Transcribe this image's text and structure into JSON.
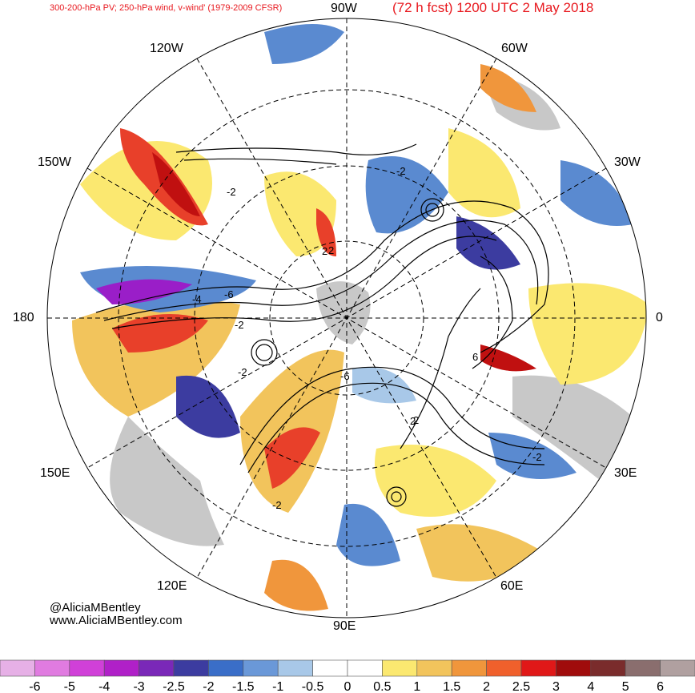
{
  "header": {
    "title_left": "300-200-hPa PV; 250-hPa wind, v-wind' (1979-2009 CFSR)",
    "title_right": "(72 h fcst) 1200 UTC 2 May 2018"
  },
  "longitude_labels": {
    "lon_90w": "90W",
    "lon_120w": "120W",
    "lon_60w": "60W",
    "lon_150w": "150W",
    "lon_30w": "30W",
    "lon_180": "180",
    "lon_0": "0",
    "lon_150e": "150E",
    "lon_30e": "30E",
    "lon_120e": "120E",
    "lon_60e": "60E",
    "lon_90e": "90E"
  },
  "contour_labels": [
    "-2",
    "-2",
    "2",
    "-4",
    "-6",
    "-2",
    "6",
    "-6",
    "2",
    "-2",
    "-2",
    "-2",
    "2",
    "2"
  ],
  "credits": {
    "handle": "@AliciaMBentley",
    "website": "www.AliciaMBentley.com"
  },
  "colorbar": {
    "ticks": [
      "-6",
      "-5",
      "-4",
      "-3",
      "-2.5",
      "-2",
      "-1.5",
      "-1",
      "-0.5",
      "0",
      "0.5",
      "1",
      "1.5",
      "2",
      "2.5",
      "3",
      "4",
      "5",
      "6"
    ],
    "colors": [
      "#e6b0e6",
      "#e07be0",
      "#d040d8",
      "#b020c8",
      "#7a28b8",
      "#3c3ca0",
      "#3a6ec8",
      "#6a98d8",
      "#a8c8e8",
      "#ffffff",
      "#ffffff",
      "#fbe870",
      "#f2c45c",
      "#f0963c",
      "#f0602c",
      "#e01818",
      "#a00c0c",
      "#7a2c2c",
      "#8a6e6e",
      "#b0a0a0"
    ],
    "palette": {
      "purple": "#9a1ec8",
      "blue_dark": "#3c3ca0",
      "blue": "#5a8ad0",
      "blue_light": "#a8c8e8",
      "yellow": "#fbe870",
      "orange": "#f2b05c",
      "red": "#e8402a",
      "red_dark": "#c01010",
      "land_gray": "#c8c8c8"
    }
  }
}
